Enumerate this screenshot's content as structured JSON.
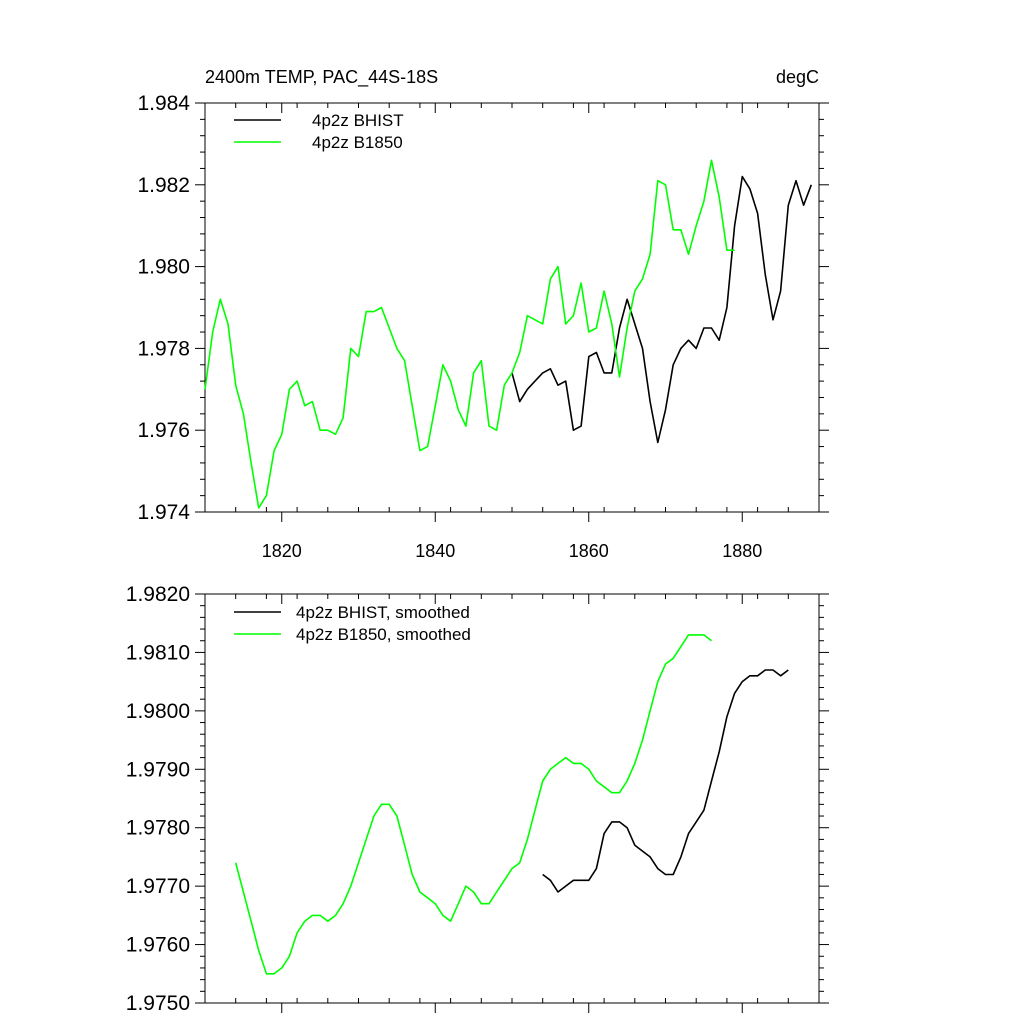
{
  "chart_data": [
    {
      "type": "line",
      "title": "2400m TEMP, PAC_44S-18S",
      "units": "degC",
      "xlim": [
        1810,
        1890
      ],
      "ylim": [
        1.974,
        1.984
      ],
      "x_ticks": [
        1820,
        1840,
        1860,
        1880
      ],
      "y_ticks": [
        1.974,
        1.976,
        1.978,
        1.98,
        1.982,
        1.984
      ],
      "y_tick_labels": [
        "1.974",
        "1.976",
        "1.978",
        "1.980",
        "1.982",
        "1.984"
      ],
      "legend_position": "top-left",
      "series": [
        {
          "name": "4p2z BHIST",
          "color": "#000000",
          "x": [
            1850,
            1851,
            1852,
            1853,
            1854,
            1855,
            1856,
            1857,
            1858,
            1859,
            1860,
            1861,
            1862,
            1863,
            1864,
            1865,
            1866,
            1867,
            1868,
            1869,
            1870,
            1871,
            1872,
            1873,
            1874,
            1875,
            1876,
            1877,
            1878,
            1879,
            1880,
            1881,
            1882,
            1883,
            1884,
            1885,
            1886,
            1887,
            1888,
            1889
          ],
          "y": [
            1.9774,
            1.9767,
            1.977,
            1.9772,
            1.9774,
            1.9775,
            1.9771,
            1.9772,
            1.976,
            1.9761,
            1.9778,
            1.9779,
            1.9774,
            1.9774,
            1.9785,
            1.9792,
            1.9786,
            1.978,
            1.9767,
            1.9757,
            1.9765,
            1.9776,
            1.978,
            1.9782,
            1.978,
            1.9785,
            1.9785,
            1.9782,
            1.979,
            1.981,
            1.9822,
            1.9819,
            1.9813,
            1.9798,
            1.9787,
            1.9794,
            1.9815,
            1.9821,
            1.9815,
            1.982
          ]
        },
        {
          "name": "4p2z B1850",
          "color": "#00ff00",
          "x": [
            1810,
            1811,
            1812,
            1813,
            1814,
            1815,
            1816,
            1817,
            1818,
            1819,
            1820,
            1821,
            1822,
            1823,
            1824,
            1825,
            1826,
            1827,
            1828,
            1829,
            1830,
            1831,
            1832,
            1833,
            1834,
            1835,
            1836,
            1837,
            1838,
            1839,
            1840,
            1841,
            1842,
            1843,
            1844,
            1845,
            1846,
            1847,
            1848,
            1849,
            1850,
            1851,
            1852,
            1853,
            1854,
            1855,
            1856,
            1857,
            1858,
            1859,
            1860,
            1861,
            1862,
            1863,
            1864,
            1865,
            1866,
            1867,
            1868,
            1869,
            1870,
            1871,
            1872,
            1873,
            1874,
            1875,
            1876,
            1877,
            1878,
            1879
          ],
          "y": [
            1.977,
            1.9784,
            1.9792,
            1.9786,
            1.9771,
            1.9764,
            1.9752,
            1.9741,
            1.9744,
            1.9755,
            1.9759,
            1.977,
            1.9772,
            1.9766,
            1.9767,
            1.976,
            1.976,
            1.9759,
            1.9763,
            1.978,
            1.9778,
            1.9789,
            1.9789,
            1.979,
            1.9785,
            1.978,
            1.9777,
            1.9766,
            1.9755,
            1.9756,
            1.9766,
            1.9776,
            1.9772,
            1.9765,
            1.9761,
            1.9774,
            1.9777,
            1.9761,
            1.976,
            1.9771,
            1.9774,
            1.9779,
            1.9788,
            1.9787,
            1.9786,
            1.9797,
            1.98,
            1.9786,
            1.9788,
            1.9796,
            1.9784,
            1.9785,
            1.9794,
            1.9786,
            1.9773,
            1.9785,
            1.9794,
            1.9797,
            1.9803,
            1.9821,
            1.982,
            1.9809,
            1.9809,
            1.9803,
            1.981,
            1.9816,
            1.9826,
            1.9817,
            1.9804,
            1.9804
          ]
        }
      ]
    },
    {
      "type": "line",
      "xlim": [
        1810,
        1890
      ],
      "ylim": [
        1.975,
        1.982
      ],
      "x_ticks": [
        1820,
        1840,
        1860,
        1880
      ],
      "y_ticks": [
        1.975,
        1.976,
        1.977,
        1.978,
        1.979,
        1.98,
        1.981,
        1.982
      ],
      "y_tick_labels": [
        "1.9750",
        "1.9760",
        "1.9770",
        "1.9780",
        "1.9790",
        "1.9800",
        "1.9810",
        "1.9820"
      ],
      "legend_position": "top-left",
      "series": [
        {
          "name": "4p2z BHIST, smoothed",
          "color": "#000000",
          "x": [
            1854,
            1855,
            1856,
            1857,
            1858,
            1859,
            1860,
            1861,
            1862,
            1863,
            1864,
            1865,
            1866,
            1867,
            1868,
            1869,
            1870,
            1871,
            1872,
            1873,
            1874,
            1875,
            1876,
            1877,
            1878,
            1879,
            1880,
            1881,
            1882,
            1883,
            1884,
            1885,
            1886
          ],
          "y": [
            1.9772,
            1.9771,
            1.9769,
            1.977,
            1.9771,
            1.9771,
            1.9771,
            1.9773,
            1.9779,
            1.9781,
            1.9781,
            1.978,
            1.9777,
            1.9776,
            1.9775,
            1.9773,
            1.9772,
            1.9772,
            1.9775,
            1.9779,
            1.9781,
            1.9783,
            1.9788,
            1.9793,
            1.9799,
            1.9803,
            1.9805,
            1.9806,
            1.9806,
            1.9807,
            1.9807,
            1.9806,
            1.9807
          ]
        },
        {
          "name": "4p2z B1850, smoothed",
          "color": "#00ff00",
          "x": [
            1814,
            1815,
            1816,
            1817,
            1818,
            1819,
            1820,
            1821,
            1822,
            1823,
            1824,
            1825,
            1826,
            1827,
            1828,
            1829,
            1830,
            1831,
            1832,
            1833,
            1834,
            1835,
            1836,
            1837,
            1838,
            1839,
            1840,
            1841,
            1842,
            1843,
            1844,
            1845,
            1846,
            1847,
            1848,
            1849,
            1850,
            1851,
            1852,
            1853,
            1854,
            1855,
            1856,
            1857,
            1858,
            1859,
            1860,
            1861,
            1862,
            1863,
            1864,
            1865,
            1866,
            1867,
            1868,
            1869,
            1870,
            1871,
            1872,
            1873,
            1874,
            1875,
            1876
          ],
          "y": [
            1.9774,
            1.9769,
            1.9764,
            1.9759,
            1.9755,
            1.9755,
            1.9756,
            1.9758,
            1.9762,
            1.9764,
            1.9765,
            1.9765,
            1.9764,
            1.9765,
            1.9767,
            1.977,
            1.9774,
            1.9778,
            1.9782,
            1.9784,
            1.9784,
            1.9782,
            1.9777,
            1.9772,
            1.9769,
            1.9768,
            1.9767,
            1.9765,
            1.9764,
            1.9767,
            1.977,
            1.9769,
            1.9767,
            1.9767,
            1.9769,
            1.9771,
            1.9773,
            1.9774,
            1.9778,
            1.9783,
            1.9788,
            1.979,
            1.9791,
            1.9792,
            1.9791,
            1.9791,
            1.979,
            1.9788,
            1.9787,
            1.9786,
            1.9786,
            1.9788,
            1.9791,
            1.9795,
            1.98,
            1.9805,
            1.9808,
            1.9809,
            1.9811,
            1.9813,
            1.9813,
            1.9813,
            1.9812
          ]
        }
      ]
    }
  ]
}
